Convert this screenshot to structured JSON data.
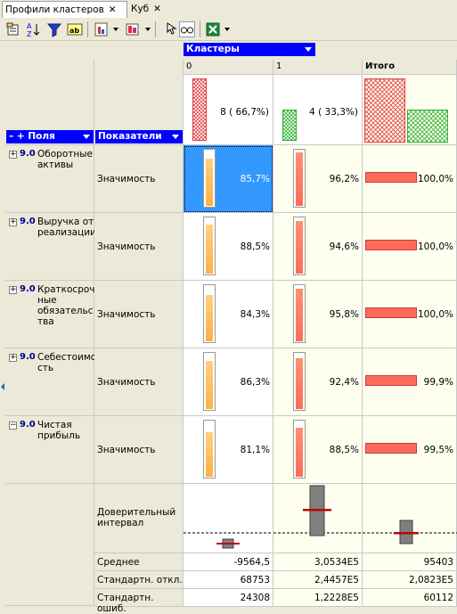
{
  "tabs": [
    {
      "label": "Профили кластеров",
      "close": "✕",
      "active": true
    },
    {
      "label": "Куб",
      "close": "✕",
      "active": false
    }
  ],
  "toolbar": {
    "icons": [
      "properties-icon",
      "sort-az-icon",
      "filter-icon",
      "text-format-icon",
      "chart-bar-icon",
      "chart-color-icon",
      "cursor-icon",
      "glasses-icon",
      "excel-export-icon"
    ]
  },
  "header": {
    "clusters_label": "Кластеры",
    "fields_label": "Поля",
    "fields_prefix": "– +",
    "indicators_label": "Показатели",
    "columns": [
      "0",
      "1",
      "Итого"
    ],
    "cluster_sizes": [
      "8 ( 66,7%)",
      "4 ( 33,3%)"
    ],
    "cluster_fractions": [
      0.667,
      0.333
    ]
  },
  "fields": [
    {
      "id": "9.0",
      "name": "Оборотные активы",
      "lines": [
        "Оборотные",
        "активы"
      ],
      "expand": "+",
      "metric": "Значимость",
      "values": [
        "85,7%",
        "96,2%",
        "100,0%"
      ],
      "fractions": [
        0.857,
        0.962,
        1.0
      ],
      "selected": true
    },
    {
      "id": "9.0",
      "name": "Выручка от реализации",
      "lines": [
        "Выручка от",
        "реализации"
      ],
      "expand": "+",
      "metric": "Значимость",
      "values": [
        "88,5%",
        "94,6%",
        "100,0%"
      ],
      "fractions": [
        0.885,
        0.946,
        1.0
      ]
    },
    {
      "id": "9.0",
      "name": "Краткосрочные обязательства",
      "lines": [
        "Краткосроч",
        "ные",
        "обязательс",
        "тва"
      ],
      "expand": "+",
      "metric": "Значимость",
      "values": [
        "84,3%",
        "95,8%",
        "100,0%"
      ],
      "fractions": [
        0.843,
        0.958,
        1.0
      ]
    },
    {
      "id": "9.0",
      "name": "Себестоимость",
      "lines": [
        "Себестоимо",
        "сть"
      ],
      "expand": "+",
      "metric": "Значимость",
      "values": [
        "86,3%",
        "92,4%",
        "99,9%"
      ],
      "fractions": [
        0.863,
        0.924,
        0.999
      ]
    },
    {
      "id": "9.0",
      "name": "Чистая прибыль",
      "lines": [
        "Чистая",
        "прибыль"
      ],
      "expand": "−",
      "metric": "Значимость",
      "values": [
        "81,1%",
        "88,5%",
        "99,5%"
      ],
      "fractions": [
        0.811,
        0.885,
        0.995
      ]
    }
  ],
  "confidence": {
    "label_lines": [
      "Доверительный",
      "интервал"
    ]
  },
  "stats": [
    {
      "label": "Среднее",
      "values": [
        "-9564,5",
        "3,0534E5",
        "95403"
      ]
    },
    {
      "label": "Стандартн. откл.",
      "values": [
        "68753",
        "2,4457E5",
        "2,0823E5"
      ]
    },
    {
      "label": "Стандартн. ошиб.",
      "values": [
        "24308",
        "1,2228E5",
        "60112"
      ]
    }
  ],
  "colors": {
    "accent_blue": "#0000ff",
    "selection": "#3399ff",
    "bar_red": "#ff6a5a",
    "cluster0_hatch": "#e04040",
    "cluster1_hatch": "#30b030"
  }
}
